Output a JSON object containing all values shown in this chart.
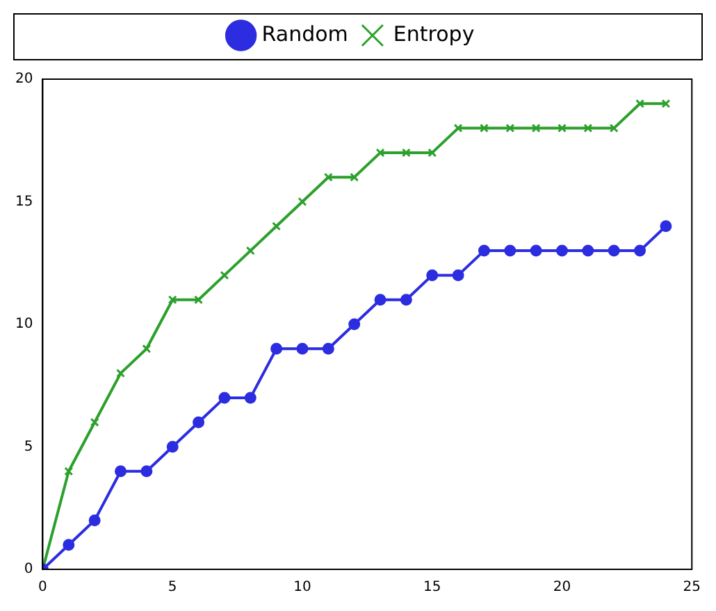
{
  "chart_data": {
    "type": "line",
    "x": [
      0,
      1,
      2,
      3,
      4,
      5,
      6,
      7,
      8,
      9,
      10,
      11,
      12,
      13,
      14,
      15,
      16,
      17,
      18,
      19,
      20,
      21,
      22,
      23,
      24
    ],
    "series": [
      {
        "name": "Random",
        "color": "#2c2ce0",
        "marker": "circle",
        "values": [
          0,
          1,
          2,
          4,
          4,
          5,
          6,
          7,
          7,
          9,
          9,
          9,
          10,
          11,
          11,
          12,
          12,
          13,
          13,
          13,
          13,
          13,
          13,
          13,
          14
        ]
      },
      {
        "name": "Entropy",
        "color": "#2ca02c",
        "marker": "cross",
        "values": [
          0,
          4,
          6,
          8,
          9,
          11,
          11,
          12,
          13,
          14,
          15,
          16,
          16,
          17,
          17,
          17,
          18,
          18,
          18,
          18,
          18,
          18,
          18,
          19,
          19
        ]
      }
    ],
    "xlim": [
      0,
      25
    ],
    "xticks": [
      0,
      5,
      10,
      15,
      20,
      25
    ],
    "ylim": [
      0,
      20
    ],
    "yticks": [
      0,
      5,
      10,
      15,
      20
    ],
    "grid": false,
    "legend": "top",
    "line_style": "solid"
  }
}
